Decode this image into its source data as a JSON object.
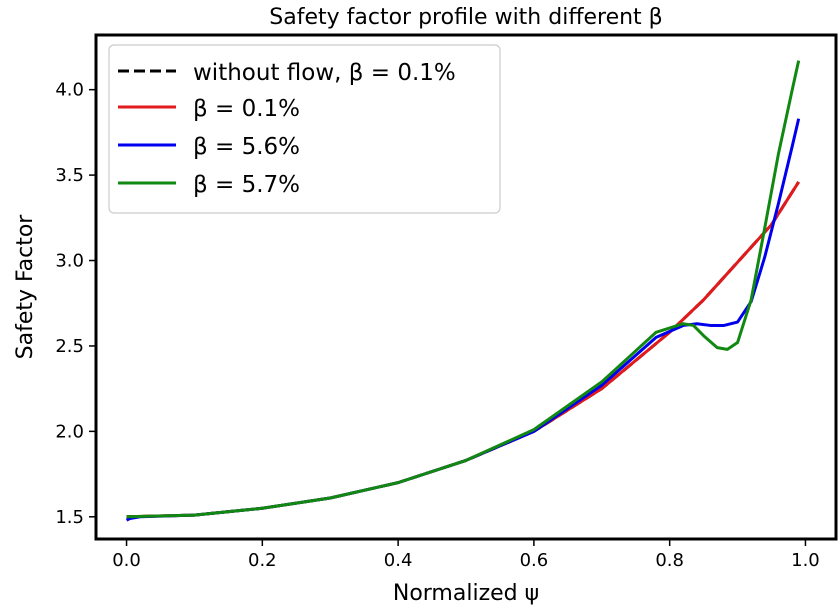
{
  "chart_data": {
    "type": "line",
    "title": "Safety factor profile with different β",
    "xlabel": "Normalized ψ",
    "ylabel": "Safety Factor",
    "xlim": [
      -0.045,
      1.045
    ],
    "ylim": [
      1.37,
      4.32
    ],
    "xticks": [
      0.0,
      0.2,
      0.4,
      0.6,
      0.8,
      1.0
    ],
    "xtick_labels": [
      "0.0",
      "0.2",
      "0.4",
      "0.6",
      "0.8",
      "1.0"
    ],
    "yticks": [
      1.5,
      2.0,
      2.5,
      3.0,
      3.5,
      4.0
    ],
    "ytick_labels": [
      "1.5",
      "2.0",
      "2.5",
      "3.0",
      "3.5",
      "4.0"
    ],
    "grid": false,
    "legend_position": "upper-left",
    "series": [
      {
        "name": "without flow, β = 0.1%",
        "color": "#000000",
        "dash": "dashed",
        "x": [
          0.0,
          0.1,
          0.2,
          0.3,
          0.4,
          0.5,
          0.6,
          0.7,
          0.8,
          0.85,
          0.9,
          0.95,
          0.99
        ],
        "y": [
          1.5,
          1.51,
          1.55,
          1.61,
          1.7,
          1.83,
          2.0,
          2.25,
          2.58,
          2.77,
          2.99,
          3.21,
          3.46
        ]
      },
      {
        "name": "β = 0.1%",
        "color": "#e31a1c",
        "dash": "solid",
        "x": [
          0.0,
          0.1,
          0.2,
          0.3,
          0.4,
          0.5,
          0.6,
          0.7,
          0.8,
          0.85,
          0.9,
          0.95,
          0.99
        ],
        "y": [
          1.5,
          1.51,
          1.55,
          1.61,
          1.7,
          1.83,
          2.0,
          2.25,
          2.58,
          2.77,
          2.99,
          3.21,
          3.46
        ]
      },
      {
        "name": "β = 5.6%",
        "color": "#0000ee",
        "dash": "solid",
        "x": [
          0.0,
          0.005,
          0.02,
          0.1,
          0.2,
          0.3,
          0.4,
          0.5,
          0.6,
          0.7,
          0.78,
          0.82,
          0.84,
          0.86,
          0.88,
          0.9,
          0.92,
          0.94,
          0.96,
          0.98,
          0.99
        ],
        "y": [
          1.48,
          1.49,
          1.5,
          1.51,
          1.55,
          1.61,
          1.7,
          1.83,
          2.0,
          2.27,
          2.55,
          2.62,
          2.63,
          2.62,
          2.62,
          2.64,
          2.76,
          3.02,
          3.33,
          3.66,
          3.83
        ]
      },
      {
        "name": "β = 5.7%",
        "color": "#118811",
        "dash": "solid",
        "x": [
          0.0,
          0.1,
          0.2,
          0.3,
          0.4,
          0.5,
          0.6,
          0.7,
          0.78,
          0.82,
          0.835,
          0.85,
          0.87,
          0.885,
          0.9,
          0.92,
          0.94,
          0.96,
          0.98,
          0.99
        ],
        "y": [
          1.5,
          1.51,
          1.55,
          1.61,
          1.7,
          1.83,
          2.01,
          2.29,
          2.58,
          2.63,
          2.62,
          2.56,
          2.49,
          2.48,
          2.52,
          2.77,
          3.19,
          3.62,
          3.99,
          4.17
        ]
      }
    ]
  }
}
